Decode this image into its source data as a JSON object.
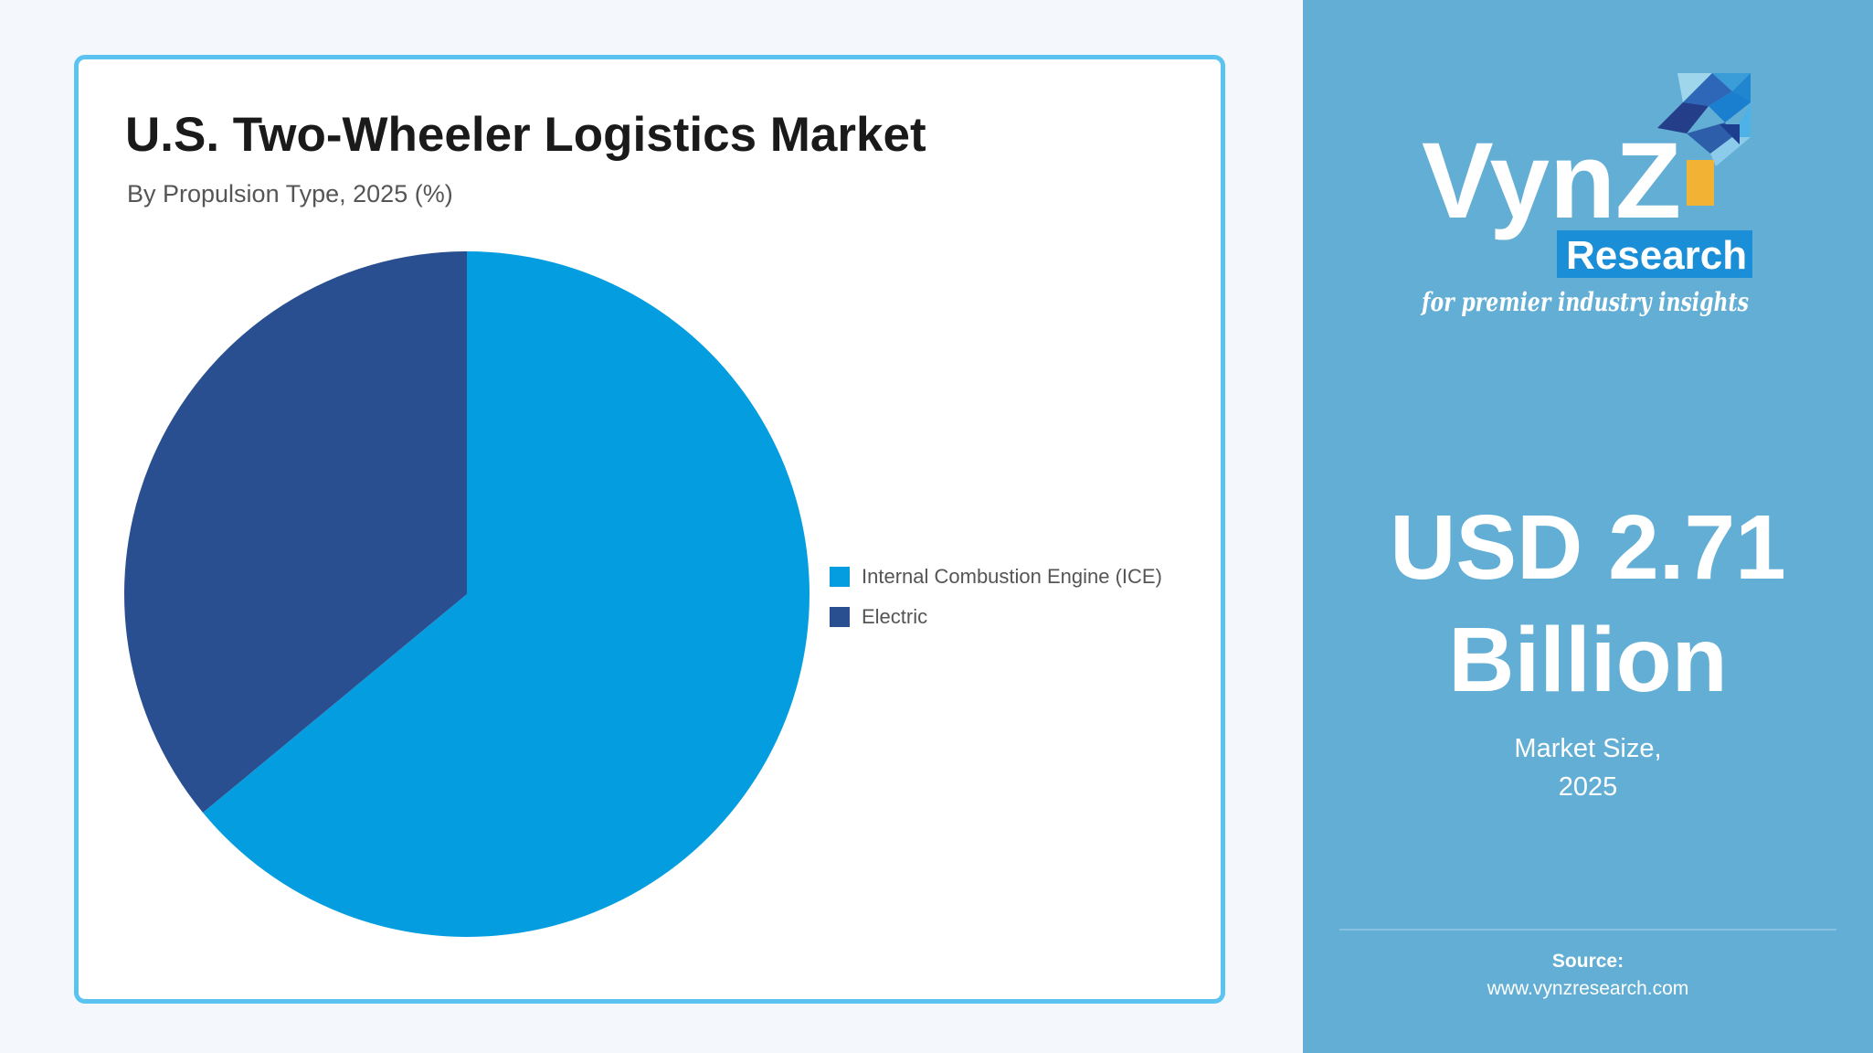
{
  "chart_data": {
    "type": "pie",
    "title": "U.S. Two-Wheeler Logistics Market",
    "subtitle": "By Propulsion Type, 2025 (%)",
    "categories": [
      "Internal Combustion Engine (ICE)",
      "Electric"
    ],
    "values": [
      64,
      36
    ],
    "colors": [
      "#049ddf",
      "#294f91"
    ],
    "start_angle_deg": 0,
    "direction": "clockwise",
    "legend": "right"
  },
  "brand": {
    "logo_word": "VynZ",
    "logo_sub": "Research",
    "tagline": "for premier industry insights"
  },
  "market": {
    "value_line1": "USD 2.71",
    "value_line2": "Billion",
    "label_line1": "Market Size,",
    "label_line2": "2025"
  },
  "source": {
    "label": "Source:",
    "url": "www.vynzresearch.com"
  },
  "colors": {
    "side_panel": "#62aed5",
    "card_border": "#5bc3f0",
    "ice": "#049ddf",
    "electric": "#294f91"
  }
}
